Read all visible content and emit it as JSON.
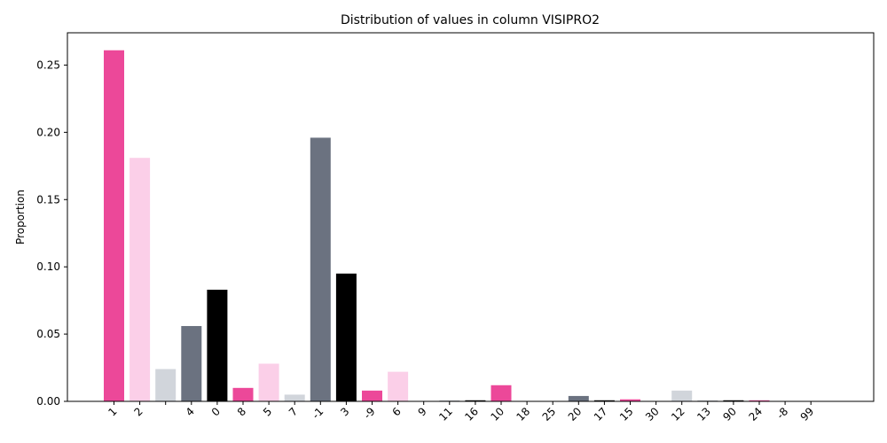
{
  "chart_data": {
    "type": "bar",
    "title": "Distribution of values in column VISIPRO2",
    "xlabel": "",
    "ylabel": "Proportion",
    "ylim": [
      0,
      0.274
    ],
    "yticks": [
      0.0,
      0.05,
      0.1,
      0.15,
      0.2,
      0.25
    ],
    "ytick_labels": [
      "0.00",
      "0.05",
      "0.10",
      "0.15",
      "0.20",
      "0.25"
    ],
    "grid": false,
    "categories": [
      "1",
      "2",
      "",
      "4",
      "0",
      "8",
      "5",
      "7",
      "-1",
      "3",
      "-9",
      "6",
      "9",
      "11",
      "16",
      "10",
      "18",
      "25",
      "20",
      "17",
      "15",
      "30",
      "12",
      "13",
      "90",
      "24",
      "-8",
      "99"
    ],
    "values": [
      0.261,
      0.181,
      0.024,
      0.056,
      0.083,
      0.01,
      0.028,
      0.005,
      0.196,
      0.095,
      0.008,
      0.022,
      0.0003,
      0.0005,
      0.0008,
      0.012,
      0.0003,
      0.0003,
      0.004,
      0.0008,
      0.0015,
      0.0003,
      0.008,
      0.0005,
      0.0008,
      0.0008,
      0.0003,
      0.0003
    ],
    "colors": [
      "#ec4899",
      "#fbcfe8",
      "#d1d5db",
      "#6b7280",
      "#000000",
      "#ec4899",
      "#fbcfe8",
      "#d1d5db",
      "#6b7280",
      "#000000",
      "#ec4899",
      "#fbcfe8",
      "#d1d5db",
      "#6b7280",
      "#000000",
      "#ec4899",
      "#fbcfe8",
      "#d1d5db",
      "#6b7280",
      "#000000",
      "#ec4899",
      "#fbcfe8",
      "#d1d5db",
      "#6b7280",
      "#000000",
      "#ec4899",
      "#fbcfe8",
      "#d1d5db"
    ]
  }
}
